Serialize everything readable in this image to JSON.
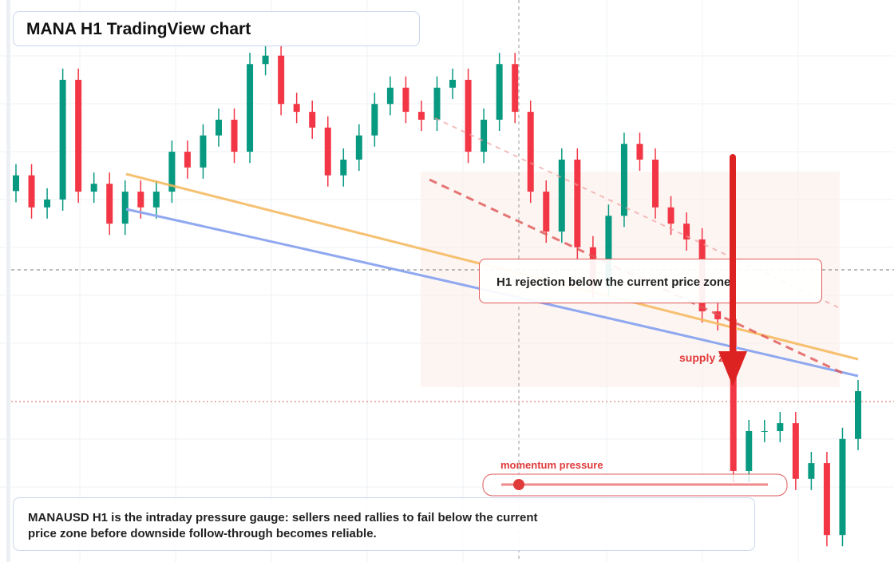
{
  "chart_data": {
    "type": "candlestick",
    "title": "MANA H1 TradingView chart",
    "annotations": [
      "H1 rejection below the current price zone",
      "supply zone",
      "momentum pressure"
    ],
    "description": "MANAUSD H1 is the intraday pressure gauge: sellers need rallies to fail below the current price zone before downside follow-through becomes reliable.",
    "ylim": [
      0,
      100
    ],
    "up_color": "#089981",
    "down_color": "#f23645",
    "open": [
      66.0,
      68.8,
      63.1,
      64.5,
      85.8,
      65.9,
      67.3,
      60.2,
      65.9,
      63.1,
      65.9,
      73.0,
      70.2,
      75.9,
      78.7,
      73.0,
      88.6,
      90.1,
      81.5,
      80.1,
      77.3,
      68.8,
      71.6,
      75.9,
      81.5,
      84.4,
      80.1,
      78.7,
      84.4,
      85.8,
      73.0,
      78.7,
      88.6,
      80.1,
      65.9,
      58.8,
      71.6,
      56.0,
      48.9,
      61.6,
      74.4,
      71.6,
      63.1,
      60.2,
      57.4,
      44.6,
      43.2,
      16.2,
      23.3,
      23.3,
      24.7,
      14.8,
      17.6,
      4.8,
      21.9
    ],
    "high": [
      70.8,
      70.8,
      66.5,
      87.8,
      87.8,
      69.3,
      69.3,
      67.9,
      67.9,
      67.9,
      75.0,
      75.0,
      77.9,
      80.7,
      80.7,
      90.6,
      92.1,
      92.1,
      83.5,
      82.1,
      79.3,
      73.6,
      77.9,
      83.5,
      86.4,
      86.4,
      82.1,
      86.4,
      87.8,
      87.8,
      80.7,
      90.6,
      90.6,
      82.1,
      67.9,
      73.6,
      73.6,
      58.0,
      63.6,
      76.4,
      76.4,
      73.6,
      65.1,
      62.2,
      59.4,
      46.6,
      45.2,
      25.3,
      25.3,
      26.7,
      26.7,
      19.6,
      19.6,
      23.9,
      32.4
    ],
    "low": [
      64.0,
      61.1,
      61.1,
      62.5,
      63.9,
      63.9,
      58.2,
      58.2,
      61.1,
      61.1,
      63.9,
      68.2,
      68.2,
      73.9,
      71.0,
      71.0,
      86.6,
      79.5,
      78.1,
      75.3,
      66.8,
      66.8,
      69.6,
      73.9,
      79.5,
      78.1,
      76.7,
      76.7,
      82.4,
      71.0,
      71.0,
      76.7,
      78.1,
      63.9,
      56.8,
      56.8,
      54.0,
      46.9,
      46.9,
      59.6,
      69.6,
      61.1,
      58.2,
      55.4,
      42.6,
      41.2,
      14.2,
      14.2,
      21.3,
      21.3,
      12.8,
      12.8,
      2.8,
      2.8,
      19.9
    ],
    "close": [
      68.8,
      63.1,
      64.5,
      85.8,
      65.9,
      67.3,
      60.2,
      65.9,
      63.1,
      65.9,
      73.0,
      70.2,
      75.9,
      78.7,
      73.0,
      88.6,
      90.1,
      81.5,
      80.1,
      77.3,
      68.8,
      71.6,
      75.9,
      81.5,
      84.4,
      80.1,
      78.7,
      84.4,
      85.8,
      73.0,
      78.7,
      88.6,
      80.1,
      65.9,
      58.8,
      71.6,
      56.0,
      48.9,
      61.6,
      74.4,
      71.6,
      63.1,
      60.2,
      57.4,
      44.6,
      43.2,
      16.2,
      23.3,
      23.3,
      24.7,
      14.8,
      17.6,
      4.8,
      21.9,
      30.4
    ]
  }
}
